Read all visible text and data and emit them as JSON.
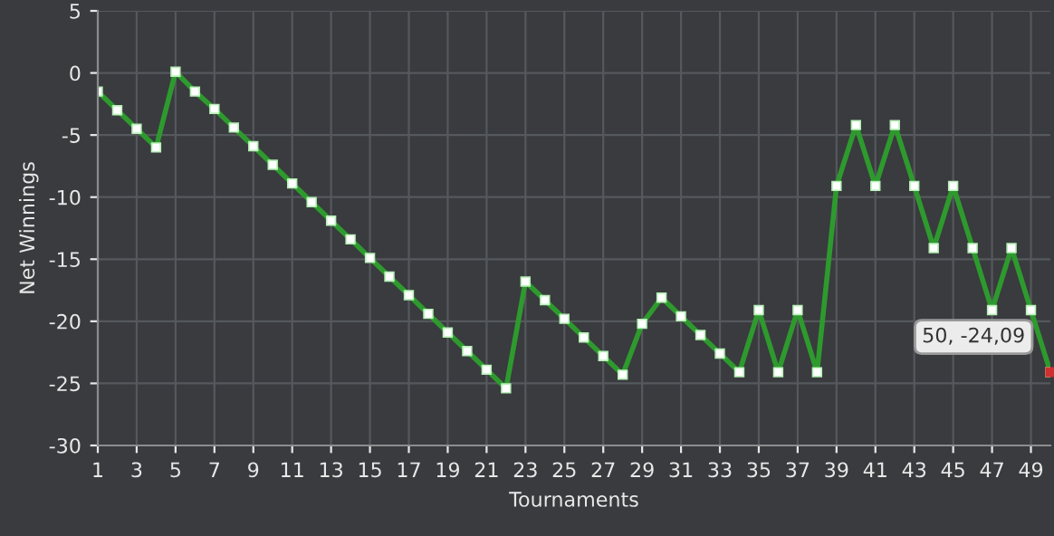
{
  "chart_data": {
    "type": "line",
    "xlabel": "Tournaments",
    "ylabel": "Net Winnings",
    "x": [
      1,
      2,
      3,
      4,
      5,
      6,
      7,
      8,
      9,
      10,
      11,
      12,
      13,
      14,
      15,
      16,
      17,
      18,
      19,
      20,
      21,
      22,
      23,
      24,
      25,
      26,
      27,
      28,
      29,
      30,
      31,
      32,
      33,
      34,
      35,
      36,
      37,
      38,
      39,
      40,
      41,
      42,
      43,
      44,
      45,
      46,
      47,
      48,
      49,
      50
    ],
    "series": [
      {
        "color": "#2e9a2e",
        "values": [
          -1.5,
          -3,
          -4.5,
          -6,
          0.1,
          -1.5,
          -2.9,
          -4.4,
          -5.9,
          -7.4,
          -8.9,
          -10.4,
          -11.9,
          -13.4,
          -14.9,
          -16.4,
          -17.9,
          -19.4,
          -20.9,
          -22.4,
          -23.9,
          -25.4,
          -16.8,
          -18.3,
          -19.8,
          -21.3,
          -22.8,
          -24.3,
          -20.2,
          -18.1,
          -19.6,
          -21.1,
          -22.6,
          -24.1,
          -19.1,
          -24.1,
          -19.1,
          -24.1,
          -9.1,
          -4.2,
          -9.1,
          -4.2,
          -9.1,
          -14.1,
          -9.1,
          -14.1,
          -19.1,
          -14.1,
          -19.1,
          -24.09
        ]
      }
    ],
    "annotations": [
      {
        "text": "50, -24,09",
        "x": 50,
        "y": -24.09
      }
    ],
    "xlim": [
      1,
      50
    ],
    "xticks": [
      1,
      3,
      5,
      7,
      9,
      11,
      13,
      15,
      17,
      19,
      21,
      23,
      25,
      27,
      29,
      31,
      33,
      35,
      37,
      39,
      41,
      43,
      45,
      47,
      49
    ],
    "ylim": [
      -30,
      5
    ],
    "yticks": [
      -30,
      -25,
      -20,
      -15,
      -10,
      -5,
      0,
      5
    ],
    "grid": true,
    "marker": "square",
    "line_style": "solid",
    "legend": false
  }
}
